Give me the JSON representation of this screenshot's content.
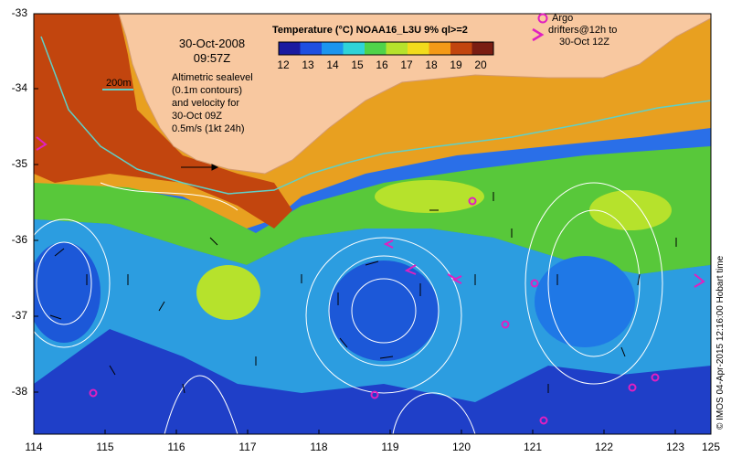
{
  "map": {
    "lon_ticks": [
      "114",
      "115",
      "116",
      "117",
      "118",
      "119",
      "120",
      "121",
      "122",
      "123",
      "124",
      "125"
    ],
    "lat_ticks": [
      "-33",
      "-34",
      "-35",
      "-36",
      "-37",
      "-38"
    ],
    "date_line1": "30-Oct-2008",
    "date_line2": "09:57Z",
    "colorbar": {
      "title": "Temperature (°C) NOAA16_L3U 9% ql>=2",
      "ticks": [
        "12",
        "13",
        "14",
        "15",
        "16",
        "17",
        "18",
        "19",
        "20"
      ],
      "colors": [
        "#1a1aa0",
        "#1f4fe0",
        "#1c95ee",
        "#2fd3d8",
        "#4fd34a",
        "#b6e22c",
        "#f2dc1c",
        "#f49a17",
        "#c2450e",
        "#7a1d12"
      ]
    },
    "scale_label": "200m",
    "legend_lines": [
      "Altimetric sealevel",
      "(0.1m contours)",
      "and velocity for",
      "30-Oct 09Z",
      "0.5m/s (1kt 24h)"
    ],
    "argo_lines": [
      "Argo",
      "drifters@12h to",
      "30-Oct 12Z"
    ],
    "credit": "© IMOS 04-Apr-2015 12:16:00 Hobart time",
    "colors": {
      "land": "#f8c8a0",
      "contour": "#ffffff",
      "argo": "#e020c0",
      "isobath": "#5fd0c8"
    }
  }
}
